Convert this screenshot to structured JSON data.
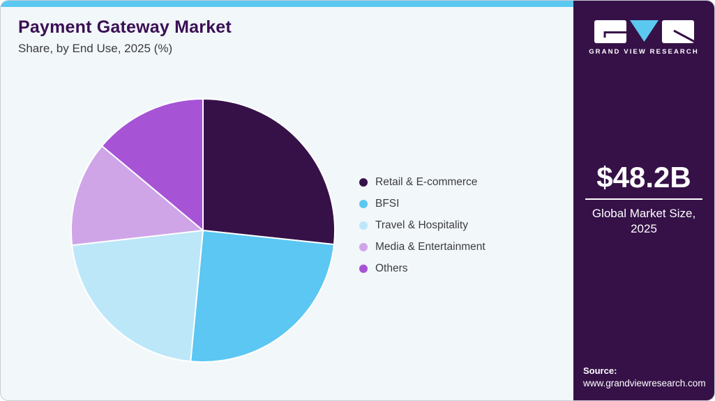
{
  "header": {
    "title": "Payment Gateway Market",
    "subtitle": "Share, by End Use, 2025 (%)"
  },
  "chart_data": {
    "type": "pie",
    "title": "Payment Gateway Market Share, by End Use, 2025 (%)",
    "unit": "%",
    "direction": "clockwise",
    "start_angle_deg": 0,
    "legend_position": "right",
    "slices": [
      {
        "label": "Retail & E-commerce",
        "value": 26.7,
        "color": "#361148"
      },
      {
        "label": "BFSI",
        "value": 24.8,
        "color": "#5bc7f2"
      },
      {
        "label": "Travel & Hospitality",
        "value": 21.7,
        "color": "#bbe7f9"
      },
      {
        "label": "Media & Entertainment",
        "value": 12.9,
        "color": "#cfa5e8"
      },
      {
        "label": "Others",
        "value": 13.9,
        "color": "#a653d6"
      }
    ]
  },
  "sidebar": {
    "background": "#361148",
    "logo": {
      "brand": "GRAND VIEW RESEARCH",
      "v_color": "#5bc8f0",
      "block_color": "#ffffff"
    },
    "market_size": {
      "value": "$48.2B",
      "label_line1": "Global Market Size,",
      "label_line2": "2025"
    },
    "source": {
      "label": "Source:",
      "url": "www.grandviewresearch.com"
    }
  },
  "theme": {
    "accent_bar": "#5bc8f0",
    "card_bg": "#f2f7fa",
    "title_color": "#3a0f54",
    "slice_gap_color": "#ffffff"
  }
}
